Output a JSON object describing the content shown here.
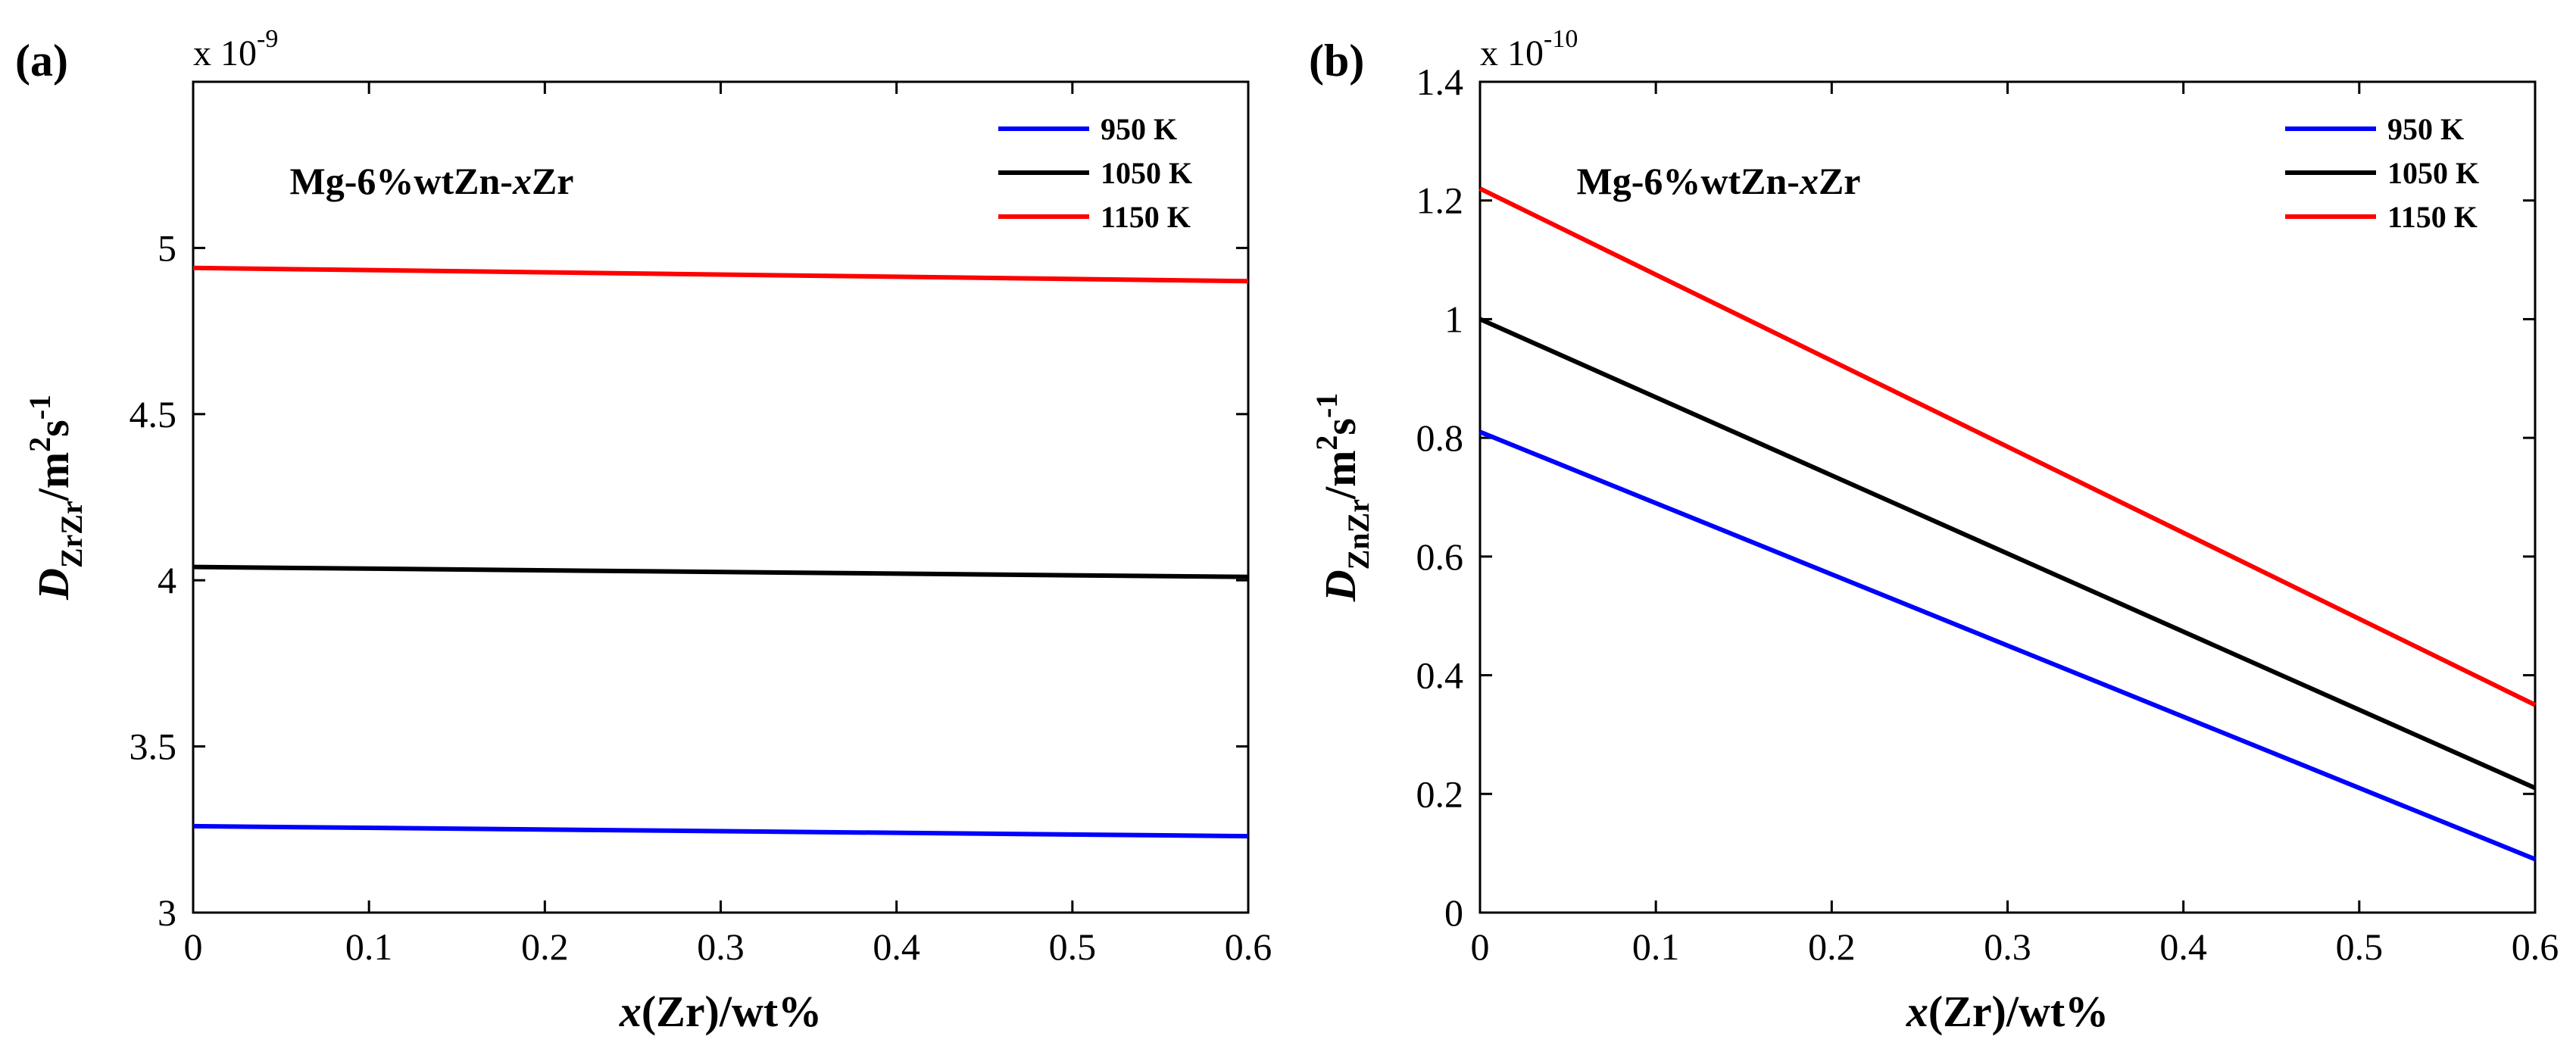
{
  "chart_data": [
    {
      "type": "line",
      "panel_label": "(a)",
      "title": "Mg-6%wtZn-",
      "title_italic": "x",
      "title_end": "Zr",
      "xlabel_italic": "x",
      "xlabel_rest": "(Zr)/wt%",
      "ylabel_main": "D",
      "ylabel_sub": "ZrZr",
      "ylabel_unit": "/m",
      "ylabel_sup1": "2",
      "ylabel_s": "s",
      "ylabel_sup2": "-1",
      "exponent_base": "x 10",
      "exponent_power": "-9",
      "xlim": [
        0,
        0.6
      ],
      "ylim": [
        3.0,
        5.5
      ],
      "xticks": [
        0,
        0.1,
        0.2,
        0.3,
        0.4,
        0.5,
        0.6
      ],
      "xtick_labels": [
        "0",
        "0.1",
        "0.2",
        "0.3",
        "0.4",
        "0.5",
        "0.6"
      ],
      "yticks": [
        3.0,
        3.5,
        4.0,
        4.5,
        5.0
      ],
      "ytick_labels": [
        "3",
        "3.5",
        "4",
        "4.5",
        "5"
      ],
      "legend_position": "top-right",
      "series": [
        {
          "name": "950 K",
          "color": "#0000ff",
          "x": [
            0,
            0.6
          ],
          "y": [
            3.26,
            3.23
          ]
        },
        {
          "name": "1050 K",
          "color": "#000000",
          "x": [
            0,
            0.6
          ],
          "y": [
            4.04,
            4.01
          ]
        },
        {
          "name": "1150 K",
          "color": "#ff0000",
          "x": [
            0,
            0.6
          ],
          "y": [
            4.94,
            4.9
          ]
        }
      ]
    },
    {
      "type": "line",
      "panel_label": "(b)",
      "title": "Mg-6%wtZn-",
      "title_italic": "x",
      "title_end": "Zr",
      "xlabel_italic": "x",
      "xlabel_rest": "(Zr)/wt%",
      "ylabel_main": "D",
      "ylabel_sub": "ZnZr",
      "ylabel_unit": "/m",
      "ylabel_sup1": "2",
      "ylabel_s": "s",
      "ylabel_sup2": "-1",
      "exponent_base": "x 10",
      "exponent_power": "-10",
      "xlim": [
        0,
        0.6
      ],
      "ylim": [
        0,
        1.4
      ],
      "xticks": [
        0,
        0.1,
        0.2,
        0.3,
        0.4,
        0.5,
        0.6
      ],
      "xtick_labels": [
        "0",
        "0.1",
        "0.2",
        "0.3",
        "0.4",
        "0.5",
        "0.6"
      ],
      "yticks": [
        0,
        0.2,
        0.4,
        0.6,
        0.8,
        1.0,
        1.2,
        1.4
      ],
      "ytick_labels": [
        "0",
        "0.2",
        "0.4",
        "0.6",
        "0.8",
        "1",
        "1.2",
        "1.4"
      ],
      "legend_position": "top-right",
      "series": [
        {
          "name": "950 K",
          "color": "#0000ff",
          "x": [
            0,
            0.6
          ],
          "y": [
            0.81,
            0.09
          ]
        },
        {
          "name": "1050 K",
          "color": "#000000",
          "x": [
            0,
            0.6
          ],
          "y": [
            1.0,
            0.21
          ]
        },
        {
          "name": "1150 K",
          "color": "#ff0000",
          "x": [
            0,
            0.6
          ],
          "y": [
            1.22,
            0.35
          ]
        }
      ]
    }
  ]
}
